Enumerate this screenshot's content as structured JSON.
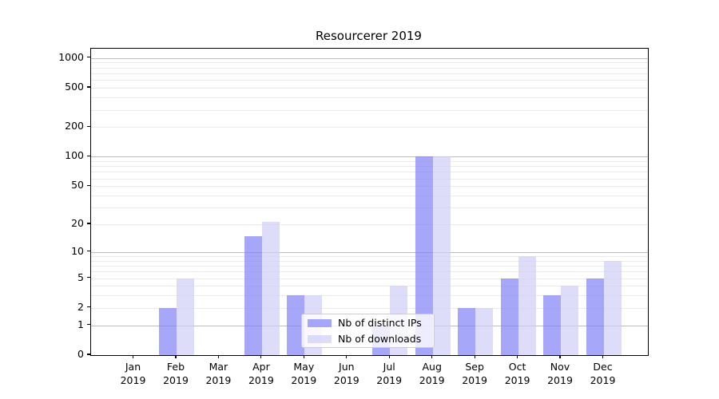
{
  "title": "Resourcerer 2019",
  "chart_data": {
    "type": "bar",
    "title": "Resourcerer 2019",
    "scale": "log1p",
    "categories": [
      "Jan",
      "Feb",
      "Mar",
      "Apr",
      "May",
      "Jun",
      "Jul",
      "Aug",
      "Sep",
      "Oct",
      "Nov",
      "Dec"
    ],
    "category_year": "2019",
    "series": [
      {
        "name": "Nb of distinct IPs",
        "color_hex": "#8282f8",
        "alpha": 0.7,
        "values": [
          0,
          2,
          0,
          15,
          3,
          0,
          1,
          100,
          2,
          5,
          3,
          5
        ]
      },
      {
        "name": "Nb of downloads",
        "color_hex": "#cecef6",
        "alpha": 0.7,
        "values": [
          0,
          5,
          0,
          21,
          3,
          0,
          4,
          100,
          2,
          9,
          4,
          8
        ]
      }
    ],
    "y_ticks": [
      0,
      1,
      2,
      5,
      10,
      20,
      50,
      100,
      200,
      500,
      1000
    ],
    "y_major_gridlines": [
      1,
      10,
      100,
      1000
    ],
    "y_minor_gridlines": [
      2,
      3,
      4,
      5,
      6,
      7,
      8,
      9,
      20,
      30,
      40,
      50,
      60,
      70,
      80,
      90,
      200,
      300,
      400,
      500,
      600,
      700,
      800,
      900
    ],
    "ylim": [
      0,
      1250
    ],
    "grid": true,
    "legend_position": "lower-center",
    "colors": {
      "major_grid": "#bdbdbd",
      "minor_grid": "#ebebeb",
      "axis": "#000000",
      "text": "#000000",
      "legend_border": "#cccccc",
      "legend_bg": "#ffffff"
    }
  }
}
